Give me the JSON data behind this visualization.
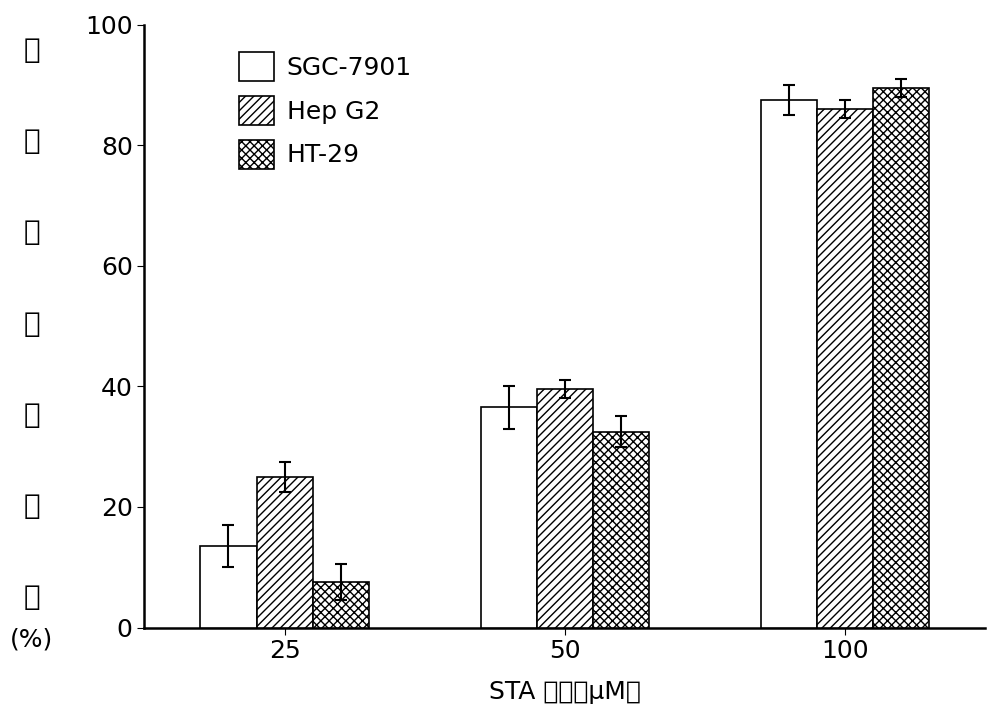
{
  "categories": [
    "25",
    "50",
    "100"
  ],
  "series": {
    "SGC-7901": {
      "values": [
        13.5,
        36.5,
        87.5
      ],
      "errors": [
        3.5,
        3.5,
        2.5
      ],
      "facecolor": "#ffffff",
      "edgecolor": "#000000",
      "hatch": ""
    },
    "Hep G2": {
      "values": [
        25.0,
        39.5,
        86.0
      ],
      "errors": [
        2.5,
        1.5,
        1.5
      ],
      "facecolor": "#ffffff",
      "edgecolor": "#000000",
      "hatch": "////"
    },
    "HT-29": {
      "values": [
        7.5,
        32.5,
        89.5
      ],
      "errors": [
        3.0,
        2.5,
        1.5
      ],
      "facecolor": "#ffffff",
      "edgecolor": "#000000",
      "hatch": "xxxx"
    }
  },
  "ylim": [
    0,
    100
  ],
  "yticks": [
    0,
    20,
    40,
    60,
    80,
    100
  ],
  "xlabel": "STA 浓度（μM）",
  "ylabel_chars": [
    "细",
    "胞",
    "存",
    "活",
    "抑",
    "制",
    "率",
    "(%)"
  ],
  "background_color": "#ffffff",
  "bar_width": 0.2,
  "tick_fontsize": 18,
  "label_fontsize": 18,
  "legend_fontsize": 18,
  "ylabel_fontsize": 20
}
